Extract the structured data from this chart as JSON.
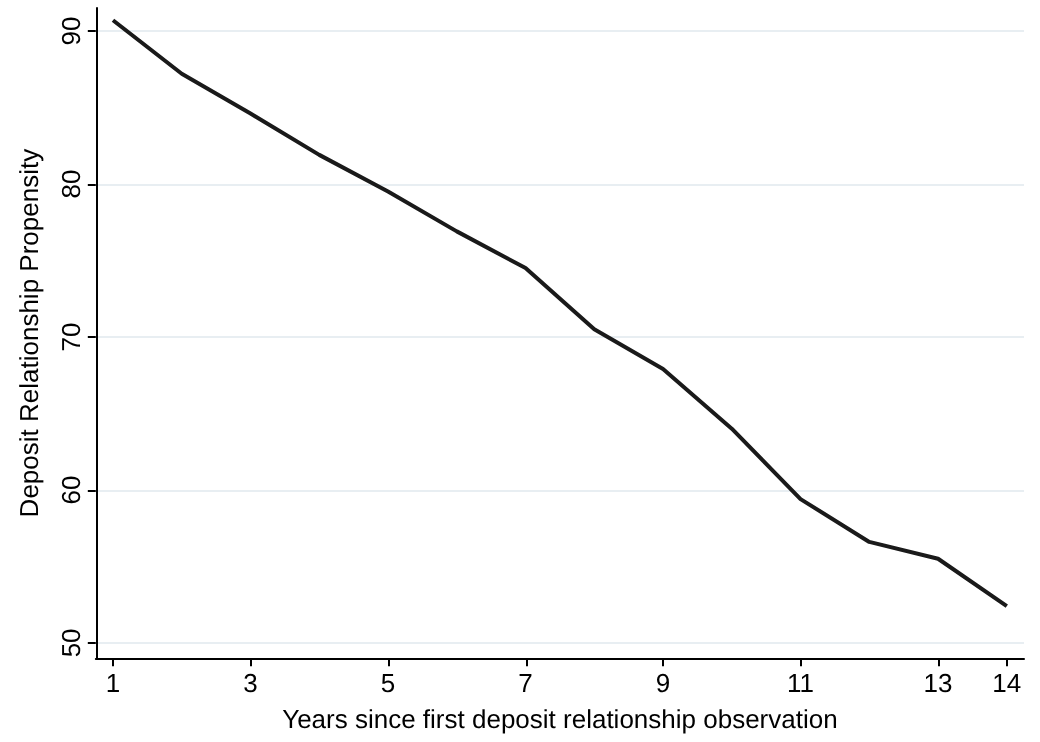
{
  "chart_data": {
    "type": "line",
    "xlabel": "Years since first deposit relationship observation",
    "ylabel": "Deposit Relationship Propensity",
    "x": [
      1,
      2,
      3,
      4,
      5,
      6,
      7,
      8,
      9,
      10,
      11,
      12,
      13,
      14
    ],
    "series": [
      {
        "color": "#1a1a1a",
        "values": [
          90.7,
          87.2,
          84.6,
          81.9,
          79.5,
          76.9,
          74.5,
          70.5,
          67.9,
          64.0,
          59.4,
          56.6,
          55.5,
          52.4
        ]
      }
    ],
    "xlim": [
      0.75,
      14.25
    ],
    "xticks": [
      1,
      3,
      5,
      7,
      9,
      11,
      13,
      14
    ],
    "ylim": [
      49,
      91.5
    ],
    "yticks": [
      50,
      60,
      70,
      80,
      90
    ],
    "grid": "y",
    "marker": "none",
    "line_style": "solid"
  }
}
